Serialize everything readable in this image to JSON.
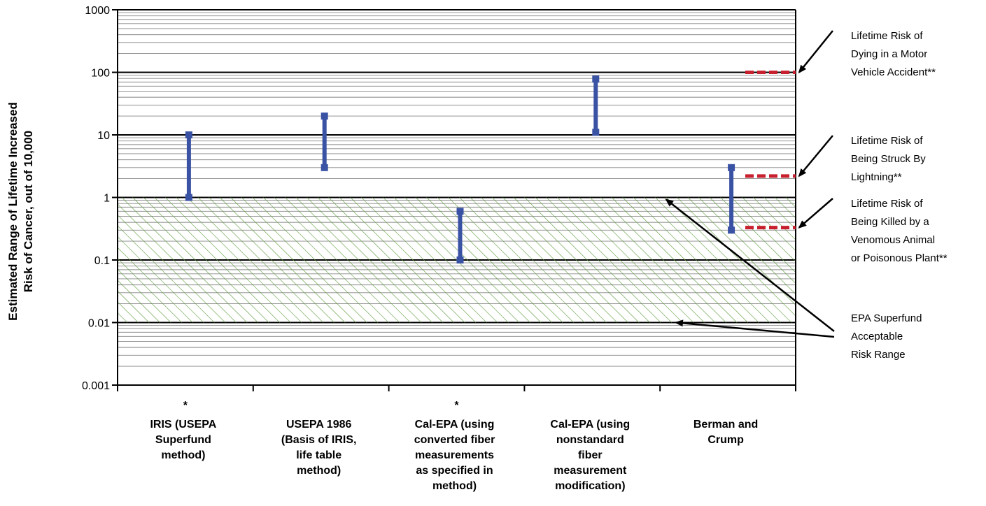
{
  "chart_data": {
    "type": "range",
    "ylabel": "Estimated Range of Lifetime Increased Risk of Cancer, out of 10,000",
    "yscale": "log",
    "ylim": [
      0.001,
      1000
    ],
    "ytick_labels": [
      "1000",
      "100",
      "10",
      "1",
      "0.1",
      "0.01",
      "0.001"
    ],
    "categories": [
      "IRIS (USEPA Superfund method)",
      "USEPA 1986 (Basis of IRIS, life table method)",
      "Cal-EPA (using converted fiber measurements as specified in method)",
      "Cal-EPA (using nonstandard fiber measurement modification)",
      "Berman and Crump"
    ],
    "category_lines": [
      [
        "IRIS (USEPA",
        "Superfund",
        "method)"
      ],
      [
        "USEPA 1986",
        "(Basis of IRIS,",
        "life table",
        "method)"
      ],
      [
        "Cal-EPA (using",
        "converted fiber",
        "measurements",
        "as specified in",
        "method)"
      ],
      [
        "Cal-EPA (using",
        "nonstandard",
        "fiber",
        "measurement",
        "modification)"
      ],
      [
        "Berman and",
        "Crump"
      ]
    ],
    "category_markers": [
      "*",
      "",
      "*",
      "",
      ""
    ],
    "series": [
      {
        "ranges": [
          {
            "low": 1,
            "high": 10
          },
          {
            "low": 3,
            "high": 20
          },
          {
            "low": 0.1,
            "high": 0.6
          },
          {
            "low": 11,
            "high": 78
          },
          {
            "low": 0.3,
            "high": 3
          }
        ],
        "color": "#3a52a4"
      }
    ],
    "reference_lines": [
      {
        "value": 100,
        "label_lines": [
          "Lifetime Risk of",
          "Dying in a Motor",
          "Vehicle Accident**"
        ],
        "color": "#c8202e"
      },
      {
        "value": 2.2,
        "label_lines": [
          "Lifetime Risk of",
          "Being Struck By",
          "Lightning**"
        ],
        "color": "#c8202e"
      },
      {
        "value": 0.33,
        "label_lines": [
          "Lifetime Risk of",
          "Being Killed by a",
          "Venomous Animal",
          "or Poisonous Plant**"
        ],
        "color": "#c8202e"
      }
    ],
    "shaded_band": {
      "low": 0.01,
      "high": 1,
      "label_lines": [
        "EPA Superfund",
        "Acceptable",
        "Risk Range"
      ],
      "color": "#5a9a3a"
    },
    "grid": true,
    "gridline_color": "#888888",
    "major_gridline_color": "#000000"
  }
}
